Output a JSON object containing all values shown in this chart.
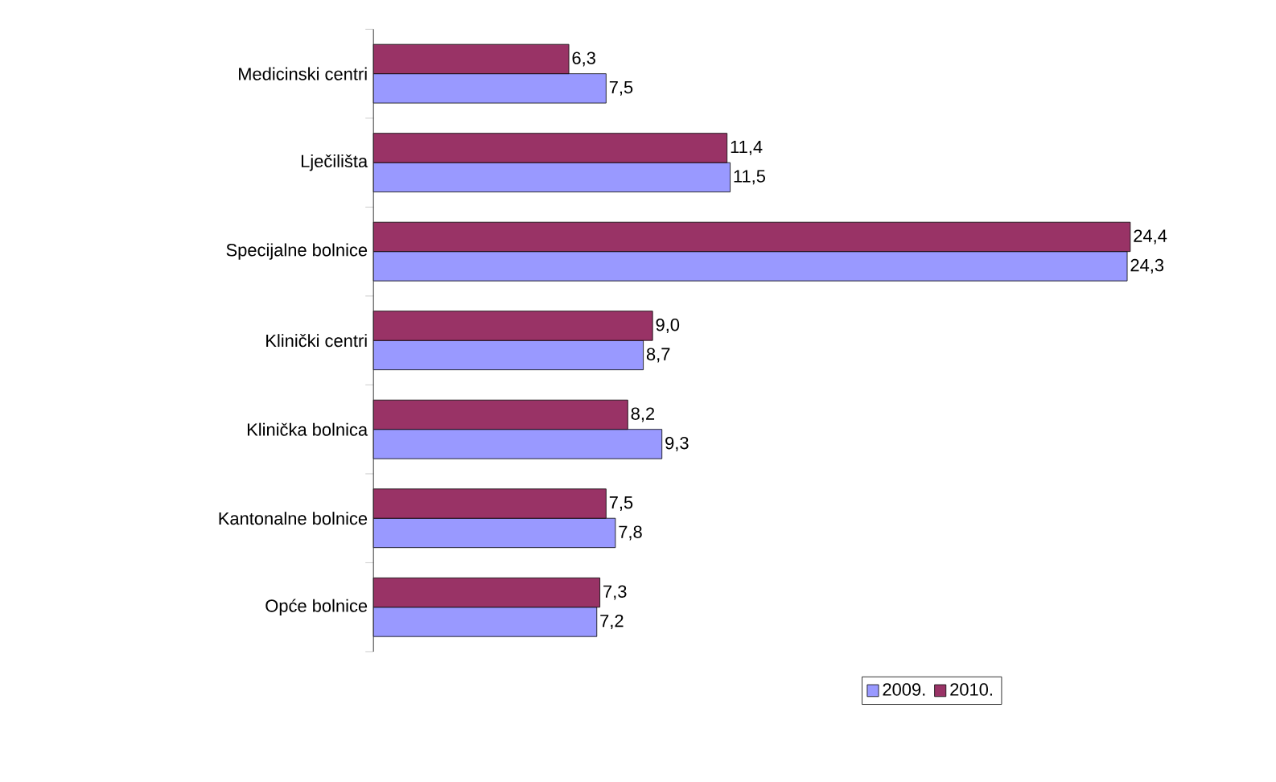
{
  "chart_data": {
    "type": "bar",
    "orientation": "horizontal",
    "legend": "bottom",
    "categories": [
      "Medicinski centri",
      "Lječilišta",
      "Specijalne bolnice",
      "Klinički centri",
      "Klinička bolnica",
      "Kantonalne bolnice",
      "Opće bolnice"
    ],
    "series": [
      {
        "name": "2009.",
        "color": "#9999ff",
        "values": [
          7.5,
          11.5,
          24.3,
          8.7,
          9.3,
          7.8,
          7.2
        ],
        "value_labels": [
          "7,5",
          "11,5",
          "24,3",
          "8,7",
          "9,3",
          "7,8",
          "7,2"
        ]
      },
      {
        "name": "2010.",
        "color": "#993366",
        "values": [
          6.3,
          11.4,
          24.4,
          9.0,
          8.2,
          7.5,
          7.3
        ],
        "value_labels": [
          "6,3",
          "11,4",
          "24,4",
          "9,0",
          "8,2",
          "7,5",
          "7,3"
        ]
      }
    ]
  }
}
